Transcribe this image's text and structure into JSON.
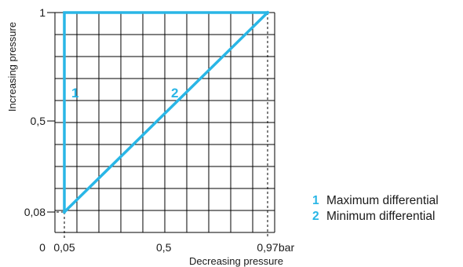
{
  "chart_data": {
    "type": "line",
    "xlabel": "Decreasing pressure",
    "ylabel": "Increasing pressure",
    "x_unit": "bar",
    "xlim": [
      0,
      1
    ],
    "ylim": [
      0,
      1
    ],
    "x_ticks": [
      {
        "value": 0,
        "label": "0"
      },
      {
        "value": 0.05,
        "label": "0,05"
      },
      {
        "value": 0.5,
        "label": "0,5"
      },
      {
        "value": 0.97,
        "label": "0,97"
      }
    ],
    "y_ticks": [
      {
        "value": 0.08,
        "label": "0,08"
      },
      {
        "value": 0.5,
        "label": "0,5"
      },
      {
        "value": 1,
        "label": "1"
      }
    ],
    "grid": true,
    "series": [
      {
        "name": "Maximum differential",
        "number": "1",
        "x": [
          0.05,
          0.05,
          0.97
        ],
        "y": [
          0.08,
          1,
          1
        ]
      },
      {
        "name": "Minimum differential",
        "number": "2",
        "x": [
          0.05,
          0.97
        ],
        "y": [
          0.08,
          1
        ]
      }
    ],
    "legend_position": "right"
  },
  "colors": {
    "series": "#29b6e6",
    "grid": "#000000",
    "text": "#1a1a1a"
  }
}
